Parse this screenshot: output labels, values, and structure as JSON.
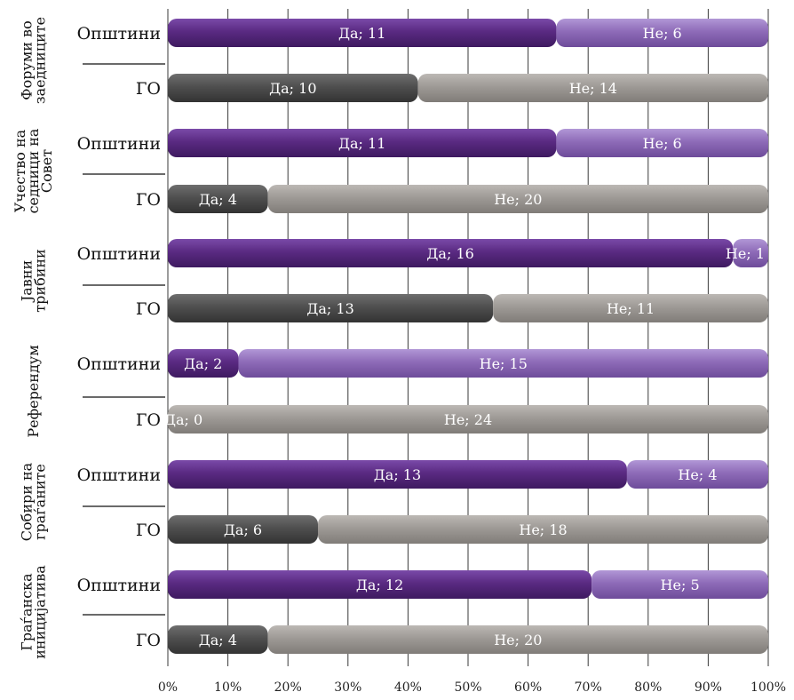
{
  "chart_data": {
    "type": "bar",
    "stacked": true,
    "normalized_percent": true,
    "orientation": "horizontal",
    "groups": [
      {
        "label_lines": [
          "Форуми во",
          "заедниците"
        ],
        "rows": [
          {
            "label": "Општини",
            "segments": [
              {
                "name": "Да",
                "value": 11,
                "label": "Да; 11"
              },
              {
                "name": "Не",
                "value": 6,
                "label": "Не; 6"
              }
            ]
          },
          {
            "label": "ГО",
            "segments": [
              {
                "name": "Да",
                "value": 10,
                "label": "Да; 10"
              },
              {
                "name": "Не",
                "value": 14,
                "label": "Не; 14"
              }
            ]
          }
        ]
      },
      {
        "label_lines": [
          "Учество на",
          "седници на",
          "Совет"
        ],
        "rows": [
          {
            "label": "Општини",
            "segments": [
              {
                "name": "Да",
                "value": 11,
                "label": "Да; 11"
              },
              {
                "name": "Не",
                "value": 6,
                "label": "Не; 6"
              }
            ]
          },
          {
            "label": "ГО",
            "segments": [
              {
                "name": "Да",
                "value": 4,
                "label": "Да; 4"
              },
              {
                "name": "Не",
                "value": 20,
                "label": "Не; 20"
              }
            ]
          }
        ]
      },
      {
        "label_lines": [
          "Јавни",
          "трибини"
        ],
        "rows": [
          {
            "label": "Општини",
            "segments": [
              {
                "name": "Да",
                "value": 16,
                "label": "Да; 16"
              },
              {
                "name": "Не",
                "value": 1,
                "label": "Не; 1"
              }
            ]
          },
          {
            "label": "ГО",
            "segments": [
              {
                "name": "Да",
                "value": 13,
                "label": "Да; 13"
              },
              {
                "name": "Не",
                "value": 11,
                "label": "Не; 11"
              }
            ]
          }
        ]
      },
      {
        "label_lines": [
          "Референдум"
        ],
        "rows": [
          {
            "label": "Општини",
            "segments": [
              {
                "name": "Да",
                "value": 2,
                "label": "Да; 2"
              },
              {
                "name": "Не",
                "value": 15,
                "label": "Не; 15"
              }
            ]
          },
          {
            "label": "ГО",
            "segments": [
              {
                "name": "Да",
                "value": 0,
                "label": "Да; 0"
              },
              {
                "name": "Не",
                "value": 24,
                "label": "Не; 24"
              }
            ]
          }
        ]
      },
      {
        "label_lines": [
          "Собири на",
          "граѓаните"
        ],
        "rows": [
          {
            "label": "Општини",
            "segments": [
              {
                "name": "Да",
                "value": 13,
                "label": "Да; 13"
              },
              {
                "name": "Не",
                "value": 4,
                "label": "Не; 4"
              }
            ]
          },
          {
            "label": "ГО",
            "segments": [
              {
                "name": "Да",
                "value": 6,
                "label": "Да; 6"
              },
              {
                "name": "Не",
                "value": 18,
                "label": "Не; 18"
              }
            ]
          }
        ]
      },
      {
        "label_lines": [
          "Граѓанска",
          "иницијатива"
        ],
        "rows": [
          {
            "label": "Општини",
            "segments": [
              {
                "name": "Да",
                "value": 12,
                "label": "Да; 12"
              },
              {
                "name": "Не",
                "value": 5,
                "label": "Не; 5"
              }
            ]
          },
          {
            "label": "ГО",
            "segments": [
              {
                "name": "Да",
                "value": 4,
                "label": "Да; 4"
              },
              {
                "name": "Не",
                "value": 20,
                "label": "Не; 20"
              }
            ]
          }
        ]
      }
    ],
    "x_ticks": [
      "0%",
      "10%",
      "20%",
      "30%",
      "40%",
      "50%",
      "60%",
      "70%",
      "80%",
      "90%",
      "100%"
    ],
    "xlim": [
      0,
      100
    ],
    "grid": true,
    "colors": {
      "Општини_Да": "#5a2a82",
      "Општини_Не": "#8e6bb8",
      "ГО_Да": "#4f4f4f",
      "ГО_Не": "#9e9a96"
    }
  }
}
